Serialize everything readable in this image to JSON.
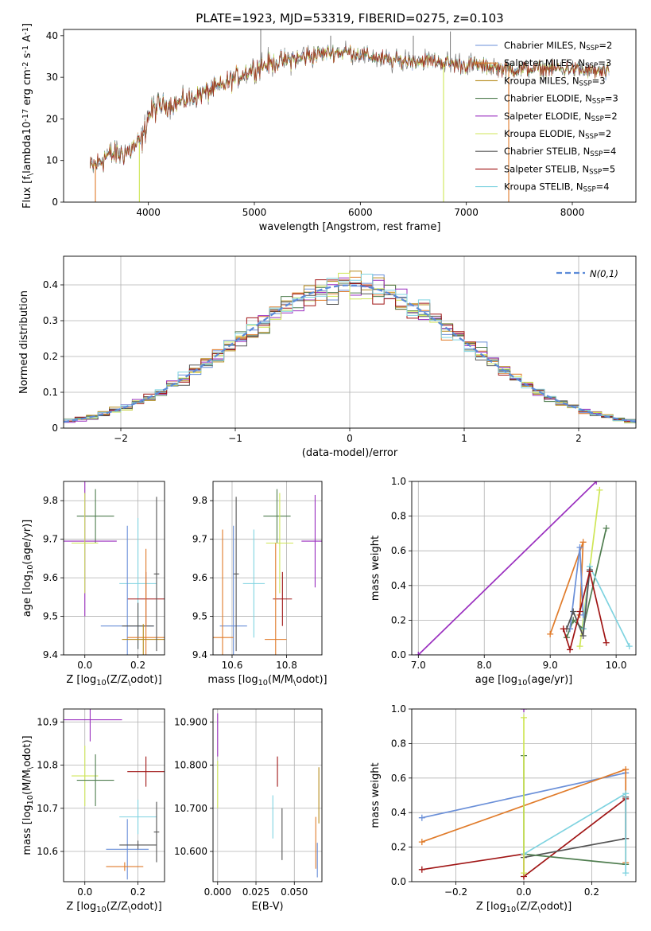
{
  "title": "PLATE=1923, MJD=53319, FIBERID=0275, z=0.103",
  "colors": {
    "chabrier_miles": "#6a8fd8",
    "salpeter_miles": "#e07b2a",
    "kroupa_miles": "#b68a1a",
    "chabrier_elodie": "#4f7d4f",
    "salpeter_elodie": "#9a2fbf",
    "kroupa_elodie": "#cfe657",
    "chabrier_stelib": "#555555",
    "salpeter_stelib": "#a01515",
    "kroupa_stelib": "#7fd3e0",
    "normal": "#5b8ad8",
    "grid": "#b0b0b0"
  },
  "legend_spectrum": [
    {
      "label": "Chabrier MILES, N$_{SSP}$=2",
      "key": "chabrier_miles"
    },
    {
      "label": "Salpeter MILES, N$_{SSP}$=3",
      "key": "salpeter_miles"
    },
    {
      "label": "Kroupa MILES, N$_{SSP}$=3",
      "key": "kroupa_miles"
    },
    {
      "label": "Chabrier ELODIE, N$_{SSP}$=3",
      "key": "chabrier_elodie"
    },
    {
      "label": "Salpeter ELODIE, N$_{SSP}$=2",
      "key": "salpeter_elodie"
    },
    {
      "label": "Kroupa ELODIE, N$_{SSP}$=2",
      "key": "kroupa_elodie"
    },
    {
      "label": "Chabrier STELIB, N$_{SSP}$=4",
      "key": "chabrier_stelib"
    },
    {
      "label": "Salpeter STELIB, N$_{SSP}$=5",
      "key": "salpeter_stelib"
    },
    {
      "label": "Kroupa STELIB, N$_{SSP}$=4",
      "key": "kroupa_stelib"
    }
  ],
  "legend_hist": "$\\mathcal{N}(0,1)$",
  "chart_data": [
    {
      "type": "line",
      "id": "spectrum",
      "xlabel": "wavelength [Angstrom, rest frame]",
      "ylabel": "Flux [f$_\\lambda$10$^{-17}$ erg cm$^{-2}$ s$^{-1}$ A$^{-1}$]",
      "xlim": [
        3200,
        8600
      ],
      "ylim": [
        0,
        41.5
      ],
      "xticks": [
        4000,
        5000,
        6000,
        7000,
        8000
      ],
      "yticks": [
        0,
        10,
        20,
        30,
        40
      ],
      "grid": false,
      "legend": "upper right",
      "continuum": [
        [
          3450,
          8
        ],
        [
          3600,
          11
        ],
        [
          3800,
          12
        ],
        [
          3950,
          15
        ],
        [
          4000,
          21
        ],
        [
          4100,
          23
        ],
        [
          4300,
          24
        ],
        [
          4500,
          26
        ],
        [
          4700,
          28
        ],
        [
          4900,
          31
        ],
        [
          5100,
          33
        ],
        [
          5300,
          34
        ],
        [
          5500,
          35
        ],
        [
          5700,
          36
        ],
        [
          5900,
          36
        ],
        [
          6100,
          35
        ],
        [
          6300,
          34
        ],
        [
          6500,
          34
        ],
        [
          6700,
          34
        ],
        [
          6900,
          33
        ],
        [
          7100,
          33
        ],
        [
          7400,
          32
        ],
        [
          7700,
          32
        ],
        [
          8000,
          32
        ],
        [
          8350,
          31
        ]
      ],
      "spikes": [
        [
          5060,
          42
        ],
        [
          5720,
          40
        ],
        [
          6500,
          40
        ],
        [
          6850,
          41
        ]
      ],
      "drops": [
        [
          3500,
          0
        ],
        [
          3915,
          0
        ],
        [
          6785,
          0
        ],
        [
          7400,
          0
        ]
      ]
    },
    {
      "type": "histogram",
      "id": "residuals",
      "xlabel": "(data-model)/error",
      "ylabel": "Normed distribution",
      "xlim": [
        -2.5,
        2.5
      ],
      "ylim": [
        0,
        0.48
      ],
      "xticks": [
        -2,
        -1,
        0,
        1,
        2
      ],
      "yticks": [
        0,
        0.1,
        0.2,
        0.3,
        0.4
      ],
      "grid": true,
      "bin_width": 0.1,
      "legend": "upper right"
    },
    {
      "type": "scatter",
      "id": "age_vs_Z",
      "xlabel": "Z [log$_{10}$(Z/Z$_\\odot$)]",
      "ylabel": "age  [log$_{10}$(age/yr)]",
      "xlim": [
        -0.08,
        0.3
      ],
      "ylim": [
        9.4,
        9.85
      ],
      "xticks": [
        0.0,
        0.2
      ],
      "yticks": [
        9.4,
        9.5,
        9.6,
        9.7,
        9.8
      ],
      "grid": true,
      "points": [
        {
          "key": "chabrier_elodie",
          "x": 0.04,
          "y": 9.76,
          "xerr": 0.07,
          "yerr": 0.07
        },
        {
          "key": "salpeter_elodie",
          "x": 0.0,
          "y": 9.695,
          "xerr": 0.12,
          "yerr": 0.195
        },
        {
          "key": "kroupa_elodie",
          "x": 0.0,
          "y": 9.69,
          "xerr": 0.05,
          "yerr": 0.13
        },
        {
          "key": "kroupa_stelib",
          "x": 0.2,
          "y": 9.585,
          "xerr": 0.07,
          "yerr": 0.17
        },
        {
          "key": "salpeter_stelib",
          "x": 0.23,
          "y": 9.545,
          "xerr": 0.07,
          "yerr": 0.07
        },
        {
          "key": "chabrier_miles",
          "x": 0.16,
          "y": 9.475,
          "xerr": 0.1,
          "yerr": 0.26
        },
        {
          "key": "chabrier_stelib",
          "x": 0.2,
          "y": 9.475,
          "xerr": 0.06,
          "yerr": 0.06
        },
        {
          "key": "salpeter_miles",
          "x": 0.23,
          "y": 9.445,
          "xerr": 0.07,
          "yerr": 0.23
        },
        {
          "key": "kroupa_miles",
          "x": 0.22,
          "y": 9.44,
          "xerr": 0.08,
          "yerr": 0.04
        },
        {
          "key": "chabrier_stelib",
          "x": 0.27,
          "y": 9.61,
          "xerr": 0.01,
          "yerr": 0.2
        }
      ]
    },
    {
      "type": "scatter",
      "id": "age_vs_mass",
      "xlabel": "mass [log$_{10}$(M/M$_\\odot$)]",
      "ylabel": "",
      "xlim": [
        10.53,
        10.93
      ],
      "ylim": [
        9.4,
        9.85
      ],
      "xticks": [
        10.6,
        10.8
      ],
      "yticks": [
        9.4,
        9.5,
        9.6,
        9.7,
        9.8
      ],
      "grid": true,
      "points": [
        {
          "key": "chabrier_elodie",
          "x": 10.765,
          "y": 9.76,
          "xerr": 0.05,
          "yerr": 0.07
        },
        {
          "key": "salpeter_elodie",
          "x": 10.905,
          "y": 9.695,
          "xerr": 0.05,
          "yerr": 0.12
        },
        {
          "key": "kroupa_elodie",
          "x": 10.775,
          "y": 9.69,
          "xerr": 0.05,
          "yerr": 0.13
        },
        {
          "key": "kroupa_stelib",
          "x": 10.68,
          "y": 9.585,
          "xerr": 0.04,
          "yerr": 0.14
        },
        {
          "key": "salpeter_stelib",
          "x": 10.785,
          "y": 9.545,
          "xerr": 0.035,
          "yerr": 0.07
        },
        {
          "key": "chabrier_miles",
          "x": 10.605,
          "y": 9.475,
          "xerr": 0.05,
          "yerr": 0.26
        },
        {
          "key": "chabrier_stelib",
          "x": 10.615,
          "y": 9.61,
          "xerr": 0.01,
          "yerr": 0.2
        },
        {
          "key": "salpeter_miles",
          "x": 10.565,
          "y": 9.445,
          "xerr": 0.04,
          "yerr": 0.28
        },
        {
          "key": "salpeter_miles",
          "x": 10.76,
          "y": 9.44,
          "xerr": 0.04,
          "yerr": 0.25
        }
      ]
    },
    {
      "type": "line",
      "id": "weight_vs_age",
      "xlabel": "age  [log$_{10}$(age/yr)]",
      "ylabel": "mass weight",
      "xlim": [
        6.9,
        10.3
      ],
      "ylim": [
        0,
        1.0
      ],
      "xticks": [
        7,
        8,
        9,
        10
      ],
      "yticks": [
        0.0,
        0.2,
        0.4,
        0.6,
        0.8,
        1.0
      ],
      "grid": true,
      "series": [
        {
          "key": "salpeter_elodie",
          "x": [
            7.0,
            9.7
          ],
          "y": [
            0.0,
            1.0
          ]
        },
        {
          "key": "kroupa_elodie",
          "x": [
            9.45,
            9.75
          ],
          "y": [
            0.05,
            0.95
          ]
        },
        {
          "key": "chabrier_elodie",
          "x": [
            9.25,
            9.35,
            9.5,
            9.85
          ],
          "y": [
            0.1,
            0.2,
            0.15,
            0.73
          ]
        },
        {
          "key": "salpeter_miles",
          "x": [
            9.0,
            9.5,
            9.45
          ],
          "y": [
            0.12,
            0.65,
            0.23
          ]
        },
        {
          "key": "chabrier_miles",
          "x": [
            9.3,
            9.45,
            9.5
          ],
          "y": [
            0.15,
            0.62,
            0.23
          ]
        },
        {
          "key": "kroupa_stelib",
          "x": [
            9.5,
            9.6,
            10.2
          ],
          "y": [
            0.15,
            0.51,
            0.05
          ]
        },
        {
          "key": "chabrier_stelib",
          "x": [
            9.25,
            9.35,
            9.5,
            9.6
          ],
          "y": [
            0.15,
            0.25,
            0.11,
            0.49
          ]
        },
        {
          "key": "salpeter_stelib",
          "x": [
            9.2,
            9.3,
            9.45,
            9.6,
            9.85
          ],
          "y": [
            0.15,
            0.03,
            0.25,
            0.48,
            0.07
          ]
        }
      ]
    },
    {
      "type": "scatter",
      "id": "mass_vs_Z",
      "xlabel": "Z [log$_{10}$(Z/Z$_\\odot$)]",
      "ylabel": "mass [log$_{10}$(M/M$_\\odot$)]",
      "xlim": [
        -0.08,
        0.3
      ],
      "ylim": [
        10.53,
        10.93
      ],
      "xticks": [
        0.0,
        0.2
      ],
      "yticks": [
        10.6,
        10.7,
        10.8,
        10.9
      ],
      "grid": true,
      "points": [
        {
          "key": "salpeter_elodie",
          "x": 0.02,
          "y": 10.905,
          "xerr": 0.12,
          "yerr": 0.05
        },
        {
          "key": "kroupa_elodie",
          "x": 0.0,
          "y": 10.775,
          "xerr": 0.05,
          "yerr": 0.07
        },
        {
          "key": "chabrier_elodie",
          "x": 0.04,
          "y": 10.765,
          "xerr": 0.07,
          "yerr": 0.06
        },
        {
          "key": "salpeter_stelib",
          "x": 0.23,
          "y": 10.785,
          "xerr": 0.07,
          "yerr": 0.035
        },
        {
          "key": "kroupa_stelib",
          "x": 0.2,
          "y": 10.68,
          "xerr": 0.07,
          "yerr": 0.04
        },
        {
          "key": "chabrier_miles",
          "x": 0.16,
          "y": 10.605,
          "xerr": 0.08,
          "yerr": 0.07
        },
        {
          "key": "chabrier_stelib",
          "x": 0.2,
          "y": 10.615,
          "xerr": 0.07,
          "yerr": 0.01
        },
        {
          "key": "salpeter_miles",
          "x": 0.15,
          "y": 10.565,
          "xerr": 0.07,
          "yerr": 0.01
        },
        {
          "key": "chabrier_stelib",
          "x": 0.27,
          "y": 10.645,
          "xerr": 0.01,
          "yerr": 0.07
        }
      ]
    },
    {
      "type": "scatter",
      "id": "mass_vs_ebv",
      "xlabel": "E(B-V)",
      "ylabel": "",
      "xlim": [
        -0.003,
        0.068
      ],
      "ylim": [
        10.53,
        10.93
      ],
      "xticks": [
        0.0,
        0.025,
        0.05
      ],
      "yticks": [
        10.6,
        10.7,
        10.8,
        10.9
      ],
      "grid": true,
      "points": [
        {
          "key": "salpeter_elodie",
          "x": 0.0,
          "y": 10.87,
          "xerr": 0,
          "yerr": 0.05
        },
        {
          "key": "kroupa_elodie",
          "x": 0.0,
          "y": 10.755,
          "xerr": 0,
          "yerr": 0.055
        },
        {
          "key": "salpeter_stelib",
          "x": 0.039,
          "y": 10.785,
          "xerr": 0,
          "yerr": 0.035
        },
        {
          "key": "kroupa_stelib",
          "x": 0.036,
          "y": 10.68,
          "xerr": 0,
          "yerr": 0.05
        },
        {
          "key": "chabrier_stelib",
          "x": 0.042,
          "y": 10.64,
          "xerr": 0,
          "yerr": 0.06
        },
        {
          "key": "salpeter_miles",
          "x": 0.064,
          "y": 10.62,
          "xerr": 0,
          "yerr": 0.06
        },
        {
          "key": "kroupa_miles",
          "x": 0.066,
          "y": 10.73,
          "xerr": 0,
          "yerr": 0.065
        },
        {
          "key": "chabrier_miles",
          "x": 0.065,
          "y": 10.58,
          "xerr": 0,
          "yerr": 0.04
        }
      ]
    },
    {
      "type": "line",
      "id": "weight_vs_Z",
      "xlabel": "Z [log$_{10}$(Z/Z$_\\odot$)]",
      "ylabel": "mass weight",
      "xlim": [
        -0.33,
        0.33
      ],
      "ylim": [
        0,
        1.0
      ],
      "xticks": [
        -0.2,
        0.0,
        0.2
      ],
      "yticks": [
        0.0,
        0.2,
        0.4,
        0.6,
        0.8,
        1.0
      ],
      "grid": true,
      "series": [
        {
          "key": "chabrier_miles",
          "x": [
            -0.3,
            0.3
          ],
          "y": [
            0.37,
            0.63
          ]
        },
        {
          "key": "salpeter_miles",
          "x": [
            -0.3,
            0.3,
            0.3
          ],
          "y": [
            0.23,
            0.65,
            0.11
          ]
        },
        {
          "key": "salpeter_stelib",
          "x": [
            -0.3,
            0.0,
            0.0,
            0.3,
            0.3
          ],
          "y": [
            0.07,
            0.16,
            0.03,
            0.48,
            0.25
          ]
        },
        {
          "key": "chabrier_stelib",
          "x": [
            0.0,
            0.3,
            0.3
          ],
          "y": [
            0.14,
            0.25,
            0.49
          ]
        },
        {
          "key": "chabrier_elodie",
          "x": [
            0.0,
            0.0,
            0.3
          ],
          "y": [
            0.73,
            0.16,
            0.1
          ]
        },
        {
          "key": "kroupa_stelib",
          "x": [
            0.0,
            0.3,
            0.3
          ],
          "y": [
            0.16,
            0.51,
            0.05
          ]
        },
        {
          "key": "kroupa_elodie",
          "x": [
            0.0,
            0.0
          ],
          "y": [
            0.05,
            0.95
          ]
        },
        {
          "key": "salpeter_elodie",
          "x": [
            0.0
          ],
          "y": [
            1.0
          ]
        }
      ]
    }
  ]
}
